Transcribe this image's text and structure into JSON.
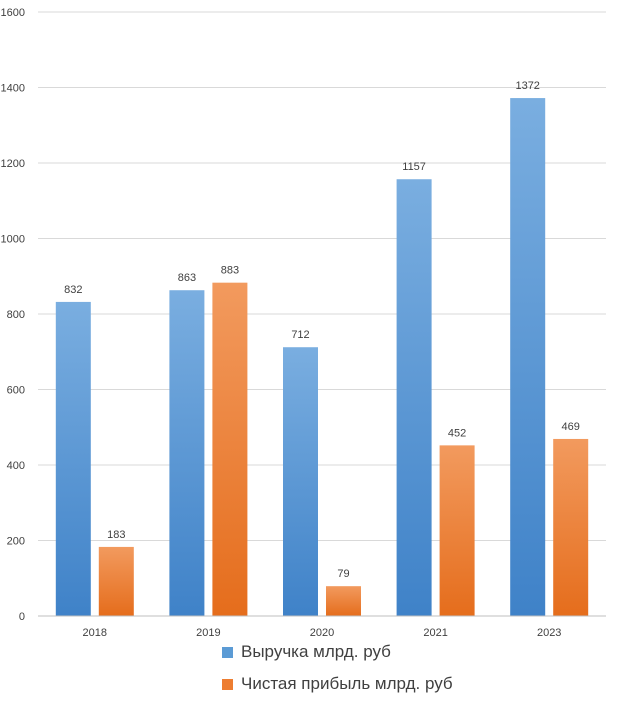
{
  "chart_data": {
    "type": "bar",
    "title": "",
    "xlabel": "",
    "ylabel": "",
    "categories": [
      "2018",
      "2019",
      "2020",
      "2021",
      "2023"
    ],
    "series": [
      {
        "name": "Выручка млрд. руб",
        "values": [
          832,
          863,
          712,
          1157,
          1372
        ],
        "color": "#5b9bd5"
      },
      {
        "name": "Чистая прибыль млрд. руб",
        "values": [
          183,
          883,
          79,
          452,
          469
        ],
        "color": "#ed7d31"
      }
    ],
    "ylim": [
      0,
      1600
    ],
    "yticks": [
      0,
      200,
      400,
      600,
      800,
      1000,
      1200,
      1400,
      1600
    ],
    "grid": true,
    "legend_position": "bottom"
  }
}
